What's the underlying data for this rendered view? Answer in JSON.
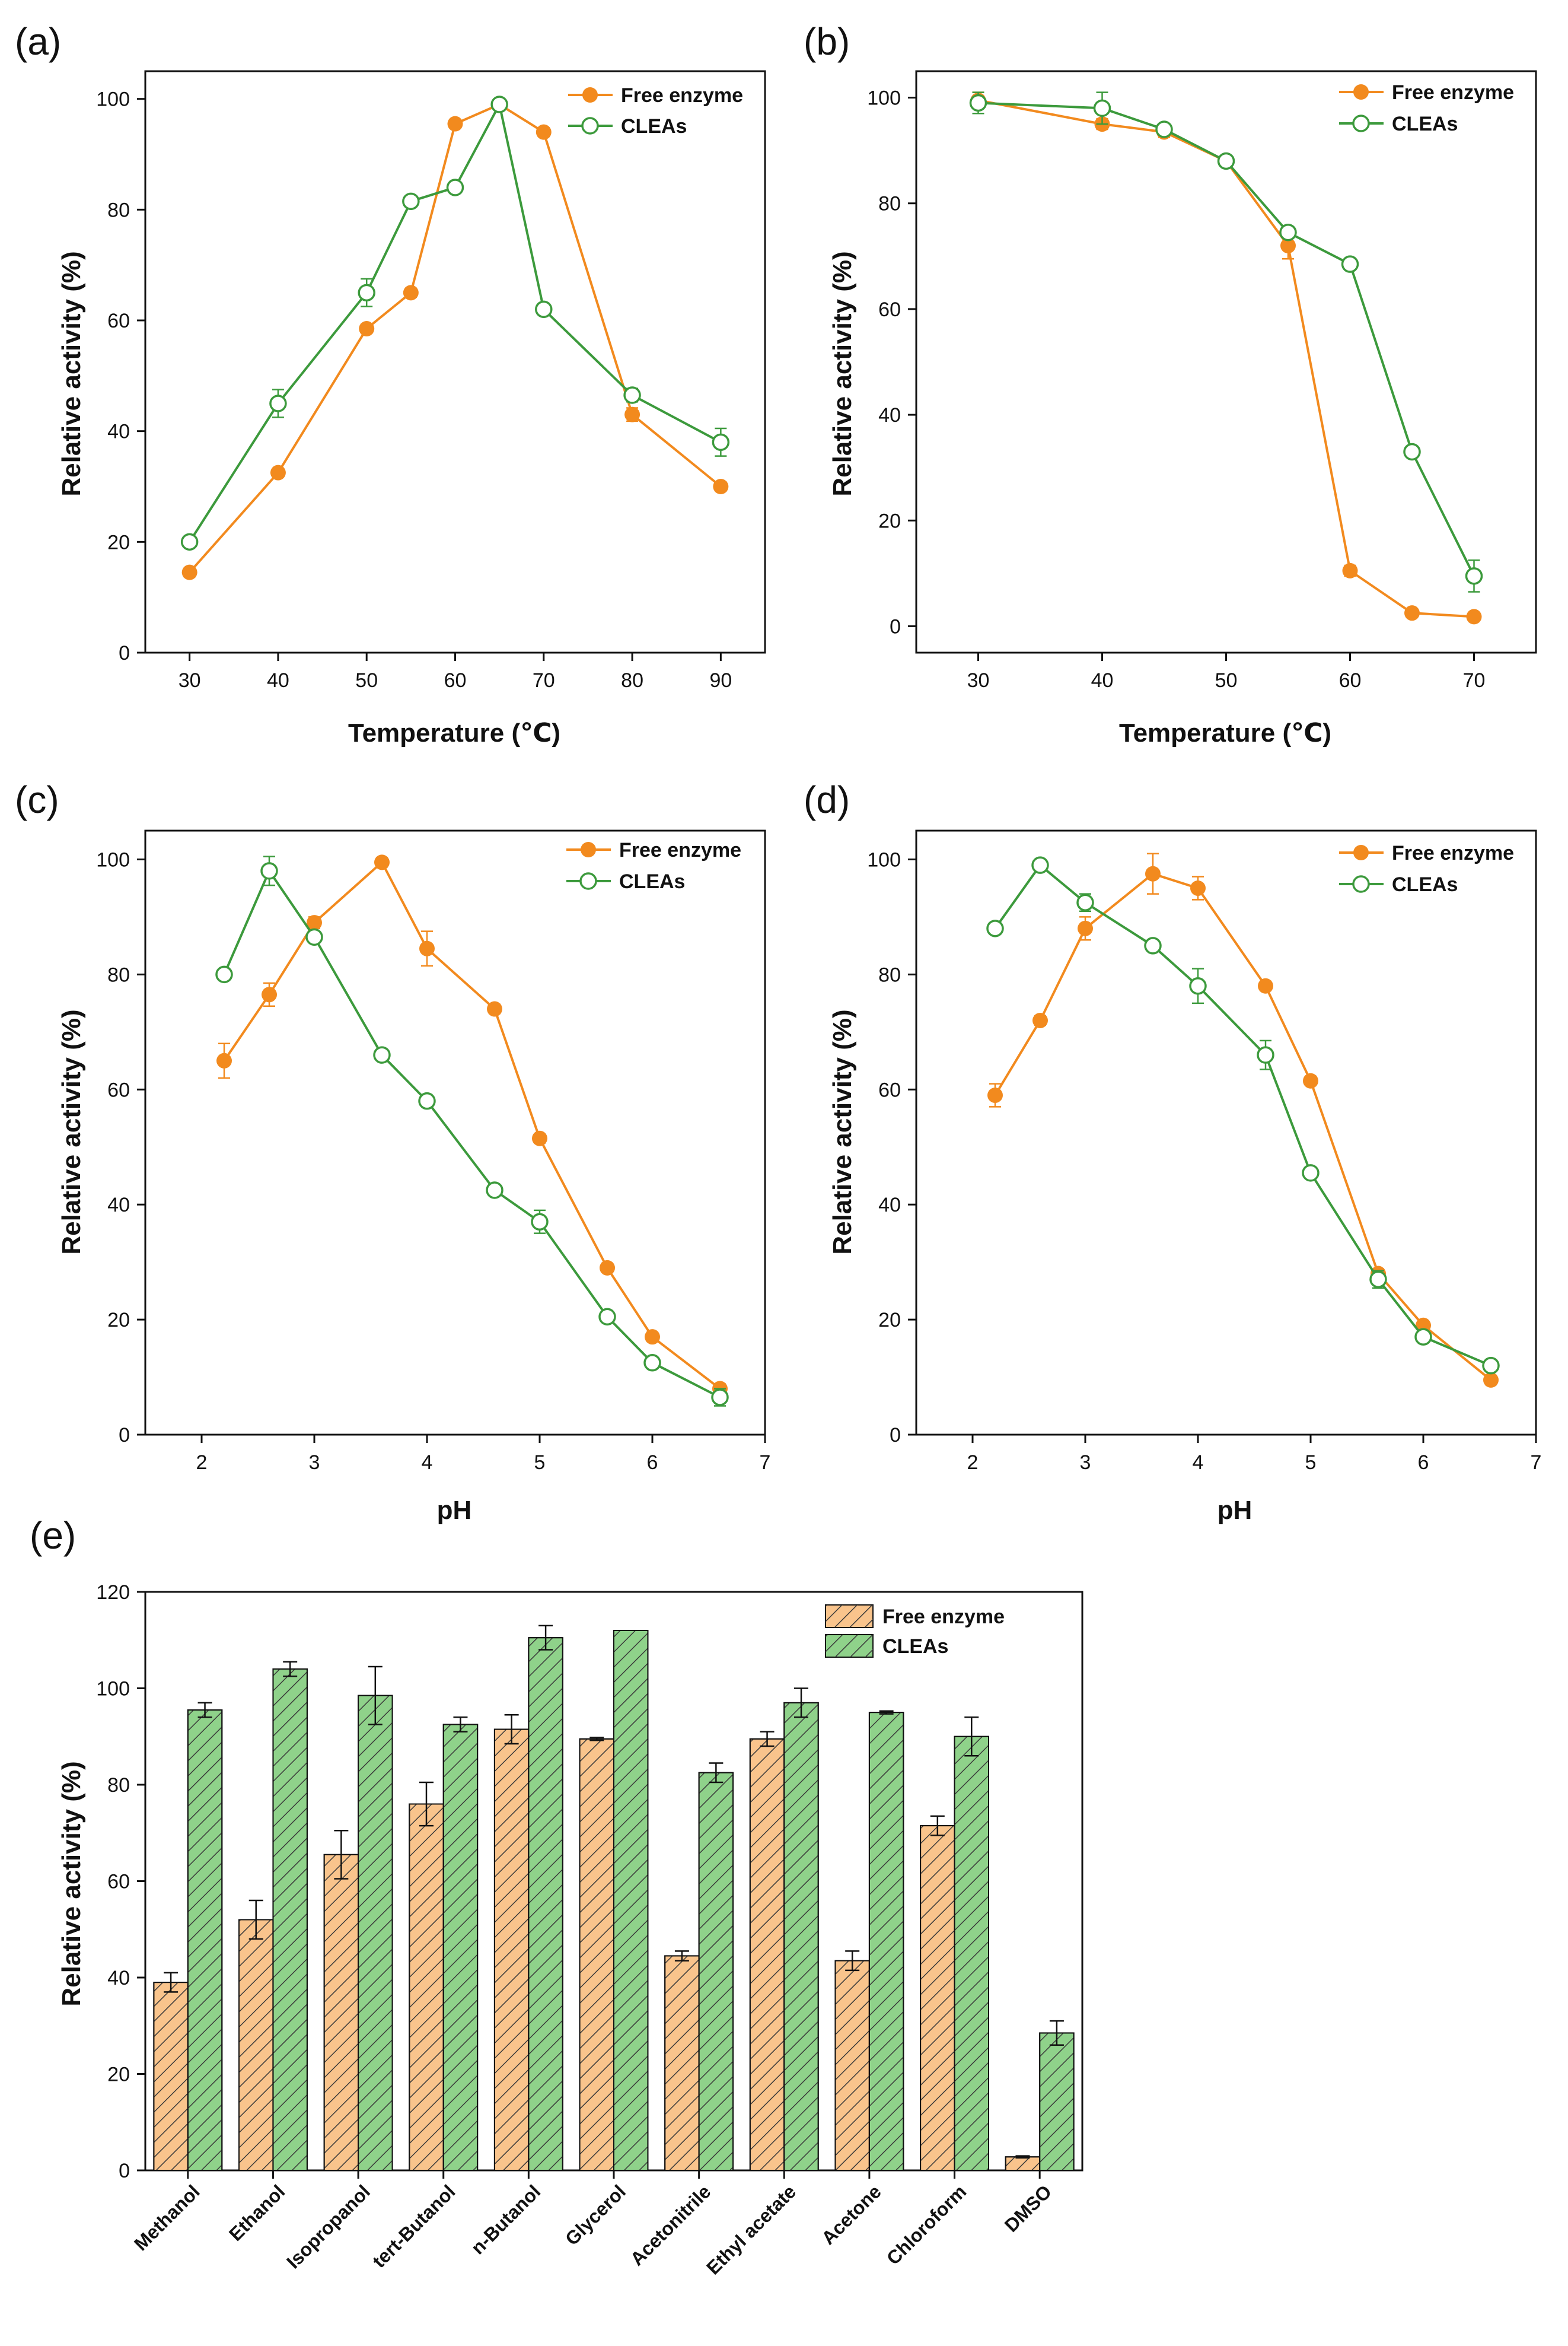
{
  "colors": {
    "free": "#f28a1e",
    "cleas": "#3c9a3c",
    "bar_free_fill": "#f9c48c",
    "bar_cleas_fill": "#8fd28a",
    "hatch": "#3a3a3a",
    "axis": "#111111"
  },
  "chart_data": [
    {
      "id": "a",
      "panel_label": "(a)",
      "type": "line",
      "xlabel": "Temperature (℃)",
      "ylabel": "Relative activity (%)",
      "xlim": [
        25,
        95
      ],
      "ylim": [
        0,
        105
      ],
      "xticks": [
        30,
        40,
        50,
        60,
        70,
        80,
        90
      ],
      "yticks": [
        0,
        20,
        40,
        60,
        80,
        100
      ],
      "legend_position": "top-right",
      "series": [
        {
          "name": "Free enzyme",
          "key": "free",
          "x": [
            30,
            40,
            50,
            55,
            60,
            65,
            70,
            80,
            90
          ],
          "y": [
            14.5,
            32.5,
            58.5,
            65,
            95.5,
            99,
            94,
            43,
            30
          ],
          "err": [
            0.8,
            0.8,
            0.8,
            0.8,
            0.8,
            0.8,
            0.8,
            1.2,
            0.8
          ]
        },
        {
          "name": "CLEAs",
          "key": "cleas",
          "x": [
            30,
            40,
            50,
            55,
            60,
            65,
            70,
            80,
            90
          ],
          "y": [
            20,
            45,
            65,
            81.5,
            84,
            99,
            62,
            46.5,
            38
          ],
          "err": [
            1,
            2.5,
            2.5,
            1,
            1,
            1,
            1,
            1.2,
            2.5
          ]
        }
      ]
    },
    {
      "id": "b",
      "panel_label": "(b)",
      "type": "line",
      "xlabel": "Temperature (℃)",
      "ylabel": "Relative activity (%)",
      "xlim": [
        25,
        75
      ],
      "ylim": [
        -5,
        105
      ],
      "xticks": [
        30,
        40,
        50,
        60,
        70
      ],
      "yticks": [
        0,
        20,
        40,
        60,
        80,
        100
      ],
      "legend_position": "top-right",
      "series": [
        {
          "name": "Free enzyme",
          "key": "free",
          "x": [
            30,
            40,
            45,
            50,
            55,
            60,
            65,
            70
          ],
          "y": [
            99.5,
            95,
            93.5,
            88,
            72,
            10.5,
            2.5,
            1.8
          ],
          "err": [
            1.5,
            1,
            1,
            1,
            2.5,
            1,
            0.5,
            0.5
          ]
        },
        {
          "name": "CLEAs",
          "key": "cleas",
          "x": [
            30,
            40,
            45,
            50,
            55,
            60,
            65,
            70
          ],
          "y": [
            99,
            98,
            94,
            88,
            74.5,
            68.5,
            33,
            9.5
          ],
          "err": [
            2,
            3,
            1,
            1,
            1,
            1,
            1,
            3
          ]
        }
      ]
    },
    {
      "id": "c",
      "panel_label": "(c)",
      "type": "line",
      "xlabel": "pH",
      "ylabel": "Relative activity (%)",
      "xlim": [
        1.5,
        7
      ],
      "ylim": [
        0,
        105
      ],
      "xticks": [
        2,
        3,
        4,
        5,
        6,
        7
      ],
      "yticks": [
        0,
        20,
        40,
        60,
        80,
        100
      ],
      "legend_position": "top-right",
      "series": [
        {
          "name": "Free enzyme",
          "key": "free",
          "x": [
            2.2,
            2.6,
            3.0,
            3.6,
            4.0,
            4.6,
            5.0,
            5.6,
            6.0,
            6.6
          ],
          "y": [
            65,
            76.5,
            89,
            99.5,
            84.5,
            74,
            51.5,
            29,
            17,
            8
          ],
          "err": [
            3,
            2,
            1,
            0.8,
            3,
            0.8,
            0.8,
            0.8,
            0.8,
            0.8
          ]
        },
        {
          "name": "CLEAs",
          "key": "cleas",
          "x": [
            2.2,
            2.6,
            3.0,
            3.6,
            4.0,
            4.6,
            5.0,
            5.6,
            6.0,
            6.6
          ],
          "y": [
            80,
            98,
            86.5,
            66,
            58,
            42.5,
            37,
            20.5,
            12.5,
            6.5
          ],
          "err": [
            1,
            2.5,
            1,
            1,
            1,
            1,
            2,
            1,
            1,
            1.5
          ]
        }
      ]
    },
    {
      "id": "d",
      "panel_label": "(d)",
      "type": "line",
      "xlabel": "pH",
      "ylabel": "Relative activity (%)",
      "xlim": [
        1.5,
        7
      ],
      "ylim": [
        0,
        105
      ],
      "xticks": [
        2,
        3,
        4,
        5,
        6,
        7
      ],
      "yticks": [
        0,
        20,
        40,
        60,
        80,
        100
      ],
      "legend_position": "top-right",
      "series": [
        {
          "name": "Free enzyme",
          "key": "free",
          "x": [
            2.2,
            2.6,
            3.0,
            3.6,
            4.0,
            4.6,
            5.0,
            5.6,
            6.0,
            6.6
          ],
          "y": [
            59,
            72,
            88,
            97.5,
            95,
            78,
            61.5,
            28,
            19,
            9.5
          ],
          "err": [
            2,
            0.8,
            2,
            3.5,
            2,
            0.8,
            0.8,
            0.8,
            0.8,
            0.8
          ]
        },
        {
          "name": "CLEAs",
          "key": "cleas",
          "x": [
            2.2,
            2.6,
            3.0,
            3.6,
            4.0,
            4.6,
            5.0,
            5.6,
            6.0,
            6.6
          ],
          "y": [
            88,
            99,
            92.5,
            85,
            78,
            66,
            45.5,
            27,
            17,
            12
          ],
          "err": [
            1,
            1,
            1.5,
            1,
            3,
            2.5,
            1,
            1.5,
            1,
            1
          ]
        }
      ]
    },
    {
      "id": "e",
      "panel_label": "(e)",
      "type": "bar",
      "xlabel": "",
      "ylabel": "Relative activity (%)",
      "ylim": [
        0,
        120
      ],
      "yticks": [
        0,
        20,
        40,
        60,
        80,
        100,
        120
      ],
      "legend_position": "top-right",
      "categories": [
        "Methanol",
        "Ethanol",
        "Isopropanol",
        "tert-Butanol",
        "n-Butanol",
        "Glycerol",
        "Acetonitrile",
        "Ethyl acetate",
        "Acetone",
        "Chloroform",
        "DMSO"
      ],
      "series": [
        {
          "name": "Free enzyme",
          "key": "free",
          "values": [
            39,
            52,
            65.5,
            76,
            91.5,
            89.5,
            44.5,
            89.5,
            43.5,
            71.5,
            2.8
          ],
          "err": [
            2,
            4,
            5,
            4.5,
            3,
            0.3,
            1,
            1.5,
            2,
            2,
            0.2
          ]
        },
        {
          "name": "CLEAs",
          "key": "cleas",
          "values": [
            95.5,
            104,
            98.5,
            92.5,
            110.5,
            112,
            82.5,
            97,
            95,
            90,
            28.5
          ],
          "err": [
            1.5,
            1.5,
            6,
            1.5,
            2.5,
            0,
            2,
            3,
            0.3,
            4,
            2.5
          ]
        }
      ]
    }
  ]
}
